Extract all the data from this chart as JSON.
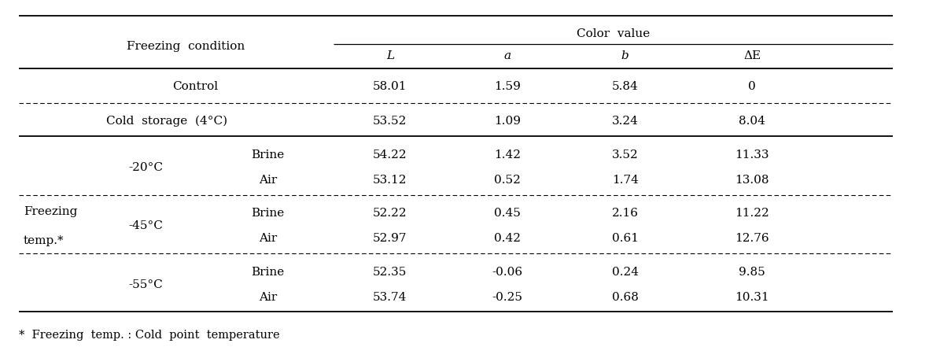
{
  "freezing_condition_label": "Freezing  condition",
  "color_value_label": "Color  value",
  "col_headers": [
    "L",
    "a",
    "b",
    "ΔE"
  ],
  "control_label": "Control",
  "cold_storage_label": "Cold  storage  (4°C)",
  "freezing_label_line1": "Freezing",
  "freezing_label_line2": "temp.*",
  "temp_labels": [
    "-20°C",
    "-45°C",
    "-55°C"
  ],
  "medium_labels": [
    "Brine",
    "Air",
    "Brine",
    "Air",
    "Brine",
    "Air"
  ],
  "control_data": [
    "58.01",
    "1.59",
    "5.84",
    "0"
  ],
  "cold_data": [
    "53.52",
    "1.09",
    "3.24",
    "8.04"
  ],
  "freezing_data": [
    [
      "54.22",
      "1.42",
      "3.52",
      "11.33"
    ],
    [
      "53.12",
      "0.52",
      "1.74",
      "13.08"
    ],
    [
      "52.22",
      "0.45",
      "2.16",
      "11.22"
    ],
    [
      "52.97",
      "0.42",
      "0.61",
      "12.76"
    ],
    [
      "52.35",
      "-0.06",
      "0.24",
      "9.85"
    ],
    [
      "53.74",
      "-0.25",
      "0.68",
      "10.31"
    ]
  ],
  "footnote": "*  Freezing  temp. : Cold  point  temperature",
  "background": "#ffffff",
  "text_color": "#000000",
  "font_size": 11.0
}
